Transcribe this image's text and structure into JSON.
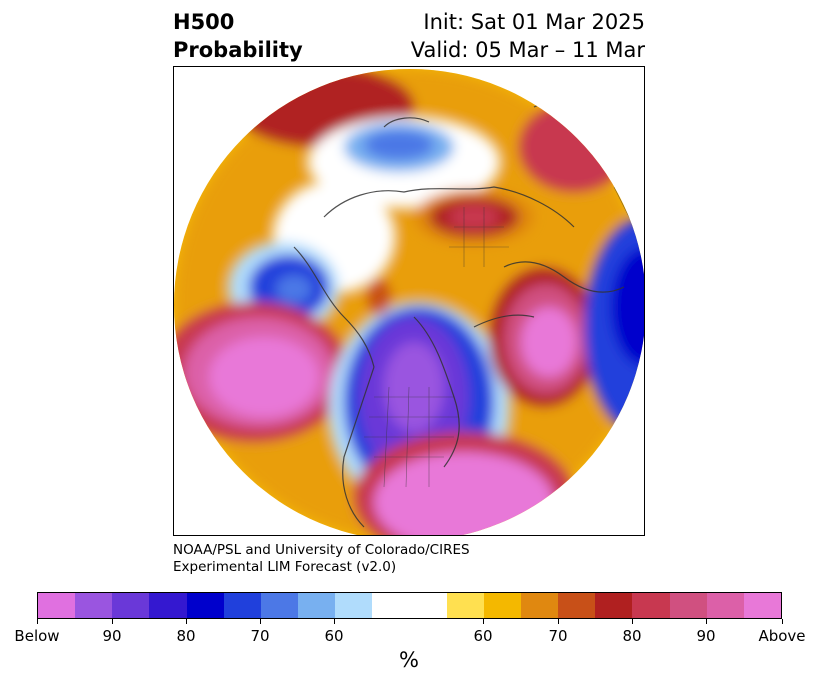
{
  "header": {
    "title_line1": "H500",
    "title_line2": "Probability",
    "init": "Init: Sat 01 Mar 2025",
    "valid": "Valid: 05 Mar – 11 Mar"
  },
  "credit": {
    "line1": "NOAA/PSL and University of Colorado/CIRES",
    "line2": "Experimental LIM Forecast (v2.0)"
  },
  "colorbar": {
    "colors": [
      "#e070e0",
      "#9a55e0",
      "#6a38d8",
      "#3418d0",
      "#0000cc",
      "#2040dc",
      "#4c78e6",
      "#78b0f0",
      "#b0dcfc",
      "#ffffff",
      "#ffe050",
      "#f4b800",
      "#e08810",
      "#c85018",
      "#b02020",
      "#c83850",
      "#d05080",
      "#dc60a8",
      "#e878d8"
    ],
    "labels": [
      "Below",
      "90",
      "80",
      "70",
      "60",
      "60",
      "70",
      "80",
      "90",
      "Above"
    ],
    "unit": "%"
  },
  "map": {
    "description_colors": {
      "white": "#ffffff",
      "coast": "#333333"
    }
  }
}
